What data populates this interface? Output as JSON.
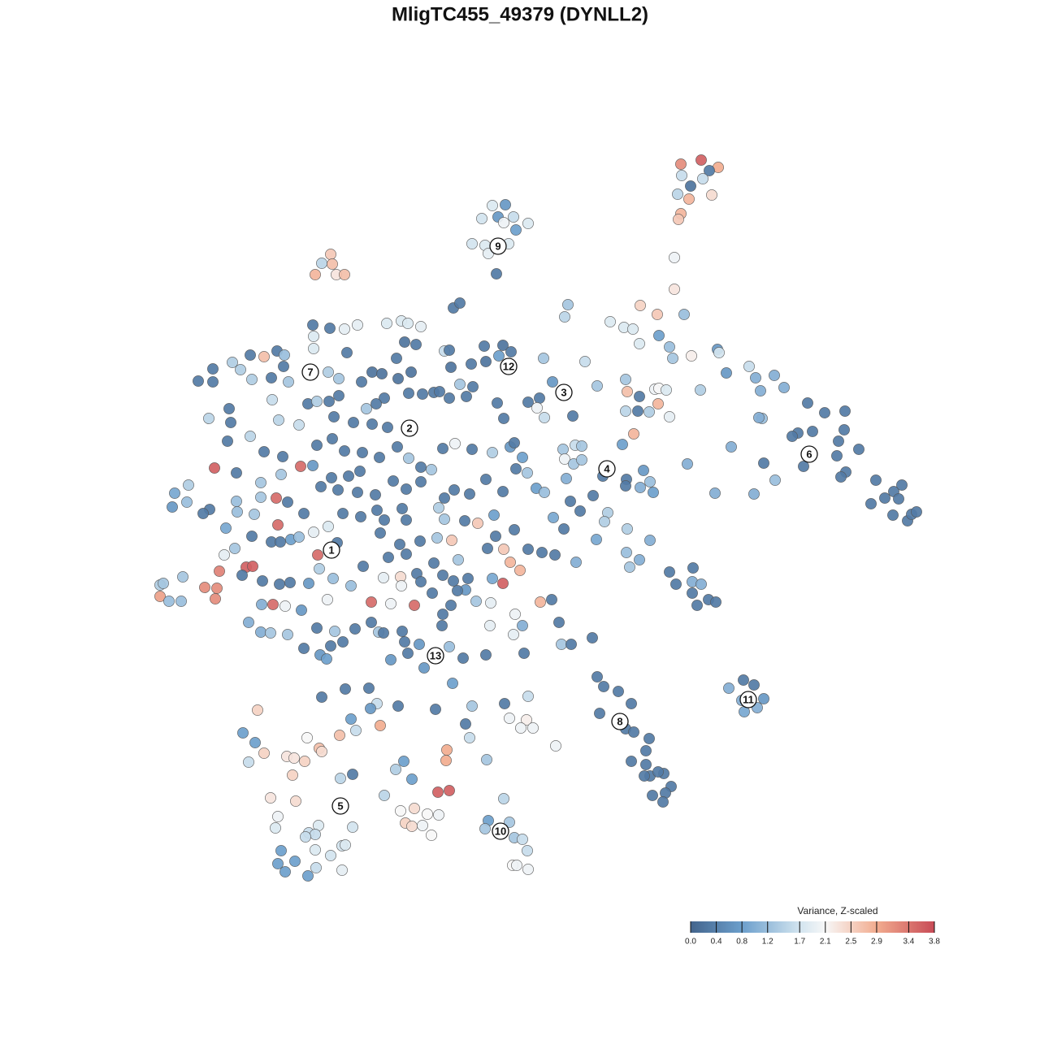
{
  "chart_data": {
    "type": "scatter",
    "title": "MligTC455_49379 (DYNLL2)",
    "xlim": [
      0,
      1280
    ],
    "ylim": [
      1280,
      0
    ],
    "colorbar": {
      "title": "Variance, Z-scaled",
      "lim": [
        0,
        3.8
      ],
      "ticks": [
        {
          "value": 0,
          "label": "0.0"
        },
        0.4,
        0.8,
        1.2,
        1.7,
        2.1,
        2.5,
        2.9,
        3.4,
        3.8
      ],
      "stops": [
        [
          0,
          "#44658d"
        ],
        [
          0.8,
          "#6c9fcc"
        ],
        [
          1.7,
          "#d2e4ef"
        ],
        [
          2.1,
          "#f7f7f7"
        ],
        [
          2.9,
          "#f2ac8f"
        ],
        [
          3.8,
          "#c84b56"
        ]
      ]
    },
    "annotations": [
      {
        "text": "1",
        "x": 408,
        "y": 677
      },
      {
        "text": "2",
        "x": 504,
        "y": 527
      },
      {
        "text": "3",
        "x": 694,
        "y": 483
      },
      {
        "text": "4",
        "x": 747,
        "y": 577
      },
      {
        "text": "5",
        "x": 419,
        "y": 992
      },
      {
        "text": "6",
        "x": 996,
        "y": 559
      },
      {
        "text": "7",
        "x": 382,
        "y": 458
      },
      {
        "text": "8",
        "x": 763,
        "y": 888
      },
      {
        "text": "9",
        "x": 613,
        "y": 303
      },
      {
        "text": "10",
        "x": 616,
        "y": 1023
      },
      {
        "text": "11",
        "x": 921,
        "y": 861
      },
      {
        "text": "12",
        "x": 626,
        "y": 451
      },
      {
        "text": "13",
        "x": 536,
        "y": 807
      }
    ],
    "x": [
      863,
      838,
      884,
      873,
      839,
      865,
      850,
      834,
      848,
      876,
      838,
      835,
      830,
      830,
      606,
      622,
      613,
      632,
      593,
      620,
      650,
      635,
      581,
      597,
      626,
      601,
      611,
      407,
      396,
      409,
      388,
      414,
      424,
      558,
      566,
      699,
      695,
      788,
      809,
      842,
      751,
      768,
      779,
      811,
      787,
      824,
      828,
      851,
      883,
      885,
      385,
      406,
      386,
      386,
      424,
      440,
      476,
      494,
      502,
      518,
      498,
      512,
      547,
      553,
      596,
      619,
      629,
      614,
      580,
      598,
      555,
      669,
      720,
      427,
      488,
      244,
      262,
      262,
      286,
      308,
      325,
      341,
      350,
      296,
      310,
      334,
      349,
      355,
      282,
      257,
      284,
      280,
      308,
      335,
      343,
      368,
      325,
      348,
      379,
      390,
      404,
      417,
      417,
      405,
      411,
      390,
      409,
      264,
      291,
      321,
      346,
      370,
      385,
      215,
      232,
      212,
      230,
      258,
      250,
      278,
      291,
      292,
      313,
      321,
      340,
      354,
      374,
      342,
      310,
      334,
      345,
      358,
      368,
      386,
      404,
      415,
      276,
      289,
      303,
      311,
      270,
      197,
      201,
      225,
      197,
      208,
      223,
      252,
      267,
      265,
      298,
      323,
      344,
      357,
      380,
      391,
      393,
      410,
      432,
      322,
      336,
      351,
      371,
      306,
      321,
      333,
      354,
      390,
      412,
      374,
      394,
      407,
      422,
      402,
      403,
      437,
      445,
      458,
      470,
      490,
      506,
      473,
      463,
      451,
      435,
      458,
      477,
      503,
      520,
      534,
      541,
      553,
      566,
      574,
      582,
      612,
      620,
      650,
      664,
      661,
      670,
      680,
      705,
      489,
      503,
      518,
      531,
      545,
      560,
      581,
      606,
      628,
      633,
      643,
      635,
      649,
      660,
      670,
      702,
      714,
      681,
      694,
      424,
      446,
      467,
      443,
      429,
      408,
      395,
      416,
      440,
      462,
      484,
      500,
      518,
      547,
      559,
      578,
      598,
      619,
      540,
      547,
      572,
      588,
      608,
      610,
      600,
      620,
      633,
      628,
      640,
      650,
      667,
      683,
      709,
      422,
      444,
      464,
      473,
      495,
      500,
      517,
      538,
      556,
      564,
      468,
      492,
      478,
      500,
      447,
      472,
      493,
      494,
      513,
      518,
      534,
      545,
      558,
      576,
      573,
      563,
      586,
      604,
      606,
      619,
      532,
      457,
      481,
      510,
      555,
      545,
      544,
      495,
      466,
      457,
      472,
      498,
      502,
      481,
      516,
      522,
      553,
      570,
      603,
      598,
      645,
      634,
      643,
      632,
      665,
      679,
      688,
      691,
      703,
      729,
      693,
      708,
      716,
      695,
      706,
      716,
      697,
      735,
      766,
      742,
      771,
      770,
      792,
      788,
      800,
      804,
      787,
      770,
      772,
      770,
      785,
      799,
      780,
      810,
      806,
      811,
      820,
      824,
      862,
      730,
      748,
      744,
      772,
      734,
      800,
      771,
      787,
      775,
      894,
      922,
      930,
      953,
      965,
      936,
      938,
      934,
      994,
      1015,
      1040,
      1039,
      982,
      975,
      1000,
      1030,
      1057,
      1032,
      1041,
      1035,
      989,
      940,
      954,
      900,
      846,
      880,
      928,
      1078,
      1072,
      1089,
      1100,
      1110,
      1106,
      1099,
      1117,
      1122,
      1128,
      824,
      832,
      853,
      852,
      863,
      852,
      858,
      872,
      881,
      915,
      928,
      897,
      940,
      913,
      932,
      916,
      735,
      743,
      761,
      777,
      738,
      770,
      780,
      799,
      795,
      777,
      795,
      800,
      817,
      793,
      826,
      819,
      816,
      803,
      810,
      396,
      425,
      454,
      490,
      464,
      456,
      536,
      557,
      581,
      621,
      650,
      573,
      578,
      627,
      648,
      656,
      641,
      684,
      599,
      317,
      299,
      314,
      306,
      325,
      378,
      353,
      362,
      375,
      393,
      396,
      418,
      438,
      432,
      468,
      360,
      434,
      419,
      487,
      497,
      507,
      550,
      549,
      473,
      539,
      553,
      333,
      364,
      342,
      339,
      392,
      380,
      388,
      376,
      434,
      493,
      510,
      526,
      540,
      499,
      507,
      520,
      531,
      620,
      601,
      627,
      597,
      633,
      643,
      649,
      631,
      636,
      650,
      346,
      363,
      342,
      351,
      379,
      389,
      407,
      421,
      425,
      421,
      388
    ],
    "y": [
      197,
      202,
      206,
      210,
      216,
      220,
      229,
      239,
      245,
      240,
      263,
      270,
      317,
      356,
      253,
      252,
      267,
      267,
      269,
      274,
      275,
      283,
      300,
      302,
      300,
      312,
      337,
      313,
      324,
      325,
      338,
      338,
      338,
      379,
      373,
      375,
      390,
      376,
      387,
      387,
      396,
      403,
      405,
      413,
      423,
      427,
      441,
      438,
      430,
      434,
      400,
      404,
      414,
      429,
      405,
      400,
      398,
      395,
      398,
      402,
      421,
      424,
      432,
      431,
      426,
      425,
      433,
      438,
      448,
      445,
      452,
      441,
      445,
      434,
      441,
      469,
      470,
      454,
      446,
      437,
      439,
      432,
      437,
      455,
      467,
      465,
      451,
      470,
      503,
      515,
      520,
      543,
      537,
      492,
      517,
      523,
      556,
      562,
      497,
      494,
      458,
      466,
      487,
      494,
      513,
      548,
      540,
      576,
      582,
      594,
      584,
      574,
      573,
      607,
      597,
      624,
      618,
      627,
      632,
      650,
      617,
      630,
      633,
      612,
      613,
      618,
      632,
      646,
      660,
      667,
      667,
      664,
      661,
      655,
      648,
      668,
      683,
      675,
      698,
      697,
      703,
      720,
      718,
      710,
      734,
      740,
      740,
      723,
      724,
      737,
      708,
      715,
      719,
      717,
      718,
      683,
      700,
      712,
      721,
      744,
      744,
      746,
      751,
      766,
      778,
      779,
      781,
      773,
      777,
      798,
      806,
      795,
      790,
      811,
      738,
      774,
      470,
      458,
      460,
      466,
      458,
      490,
      497,
      503,
      520,
      522,
      526,
      484,
      485,
      483,
      482,
      490,
      473,
      488,
      476,
      496,
      515,
      495,
      490,
      502,
      514,
      470,
      512,
      550,
      564,
      575,
      578,
      552,
      546,
      553,
      557,
      550,
      545,
      563,
      577,
      582,
      601,
      606,
      617,
      629,
      637,
      651,
      555,
      557,
      563,
      580,
      586,
      588,
      599,
      603,
      606,
      609,
      592,
      602,
      593,
      613,
      603,
      608,
      590,
      605,
      625,
      639,
      641,
      644,
      634,
      660,
      675,
      676,
      652,
      692,
      702,
      676,
      680,
      683,
      692,
      632,
      636,
      628,
      640,
      626,
      640,
      666,
      662,
      665,
      689,
      656,
      670,
      686,
      682,
      697,
      711,
      710,
      721,
      706,
      716,
      693,
      708,
      715,
      712,
      726,
      727,
      740,
      742,
      712,
      718,
      730,
      741,
      743,
      745,
      745,
      756,
      770,
      777,
      778,
      766,
      779,
      790,
      804,
      812,
      793,
      822,
      796,
      810,
      770,
      806,
      804,
      756,
      770,
      781,
      741,
      738,
      766,
      793,
      793,
      785,
      553,
      548,
      549,
      565,
      571,
      566,
      589,
      475,
      547,
      586,
      590,
      598,
      579,
      600,
      593,
      606,
      488,
      467,
      482,
      506,
      506,
      507,
      534,
      497,
      479,
      478,
      480,
      513,
      480,
      610,
      631,
      642,
      651,
      664,
      665,
      680,
      689,
      698,
      459,
      451,
      465,
      462,
      477,
      481,
      515,
      514,
      496,
      508,
      506,
      529,
      533,
      537,
      531,
      561,
      553,
      543,
      581,
      587,
      574,
      570,
      591,
      550,
      571,
      607,
      608,
      591,
      620,
      613,
      605,
      597,
      614,
      634,
      641,
      633,
      630,
      704,
      719,
      699,
      716,
      719,
      730,
      745,
      738,
      741,
      837,
      843,
      847,
      860,
      862,
      871,
      876,
      833,
      845,
      851,
      866,
      878,
      897,
      901,
      909,
      924,
      937,
      941,
      955,
      952,
      955,
      968,
      976,
      987,
      979,
      950,
      858,
      848,
      847,
      869,
      866,
      872,
      873,
      841,
      869,
      866,
      857,
      891,
      908,
      884,
      886,
      896,
      896,
      918,
      935,
      874,
      902,
      914,
      938,
      927,
      908,
      931,
      933,
      937,
      921,
      925,
      905,
      899,
      885,
      893,
      954,
      953,
      958,
      947,
      937,
      959,
      923,
      936,
      979,
      975,
      973,
      982,
      986,
      1005,
      1019,
      1016,
      1025,
      1027,
      1030,
      1018,
      998,
      995,
      1002,
      1003,
      1013,
      1017,
      1016,
      1028,
      983,
      1010,
      1012,
      1020,
      1031,
      1033,
      1047,
      1065,
      1065,
      1070,
      1047,
      1060,
      1063,
      1073,
      1078,
      1068,
      1053,
      1041,
      1040,
      1071,
      1046
    ],
    "values": [
      3.6,
      3.2,
      2.9,
      0.3,
      1.6,
      1.6,
      0.2,
      1.5,
      2.8,
      2.4,
      2.8,
      2.6,
      2.0,
      2.3,
      1.8,
      0.7,
      0.7,
      1.6,
      1.7,
      2.0,
      1.8,
      0.8,
      1.7,
      1.8,
      1.8,
      1.9,
      0.3,
      2.6,
      1.5,
      2.7,
      2.8,
      2.3,
      2.7,
      0.3,
      0.3,
      1.3,
      1.5,
      2.5,
      2.6,
      1.2,
      1.8,
      1.8,
      1.8,
      0.8,
      1.8,
      1.2,
      1.3,
      2.2,
      0.7,
      1.7,
      0.3,
      0.3,
      1.8,
      1.8,
      1.9,
      1.9,
      1.8,
      1.8,
      1.8,
      1.9,
      0.2,
      0.3,
      1.6,
      0.3,
      0.3,
      0.2,
      0.3,
      0.8,
      0.3,
      0.2,
      0.2,
      1.3,
      1.6,
      0.3,
      0.3,
      0.3,
      0.3,
      0.3,
      1.4,
      0.3,
      2.7,
      0.3,
      1.2,
      1.4,
      1.4,
      0.3,
      0.3,
      1.3,
      0.3,
      1.5,
      0.3,
      0.3,
      1.5,
      1.6,
      1.5,
      1.6,
      0.3,
      0.3,
      0.3,
      1.4,
      1.4,
      1.3,
      0.3,
      0.3,
      0.3,
      0.3,
      0.3,
      3.6,
      0.3,
      1.3,
      1.3,
      3.5,
      0.7,
      0.9,
      1.4,
      0.7,
      1.2,
      0.3,
      0.3,
      0.9,
      1.2,
      1.2,
      1.3,
      1.3,
      3.5,
      0.3,
      0.3,
      3.5,
      0.3,
      0.3,
      0.3,
      0.8,
      1.2,
      1.9,
      1.8,
      0.3,
      1.9,
      1.3,
      3.6,
      3.6,
      3.3,
      1.4,
      1.3,
      1.3,
      3.0,
      1.2,
      1.2,
      3.2,
      3.2,
      3.2,
      0.3,
      0.3,
      0.3,
      0.3,
      0.7,
      3.5,
      1.4,
      1.2,
      1.2,
      1.0,
      3.5,
      2.0,
      0.7,
      1.0,
      1.0,
      1.3,
      1.3,
      0.3,
      1.3,
      0.3,
      0.7,
      0.3,
      0.3,
      0.8,
      2.0,
      0.3,
      0.3,
      0.2,
      0.2,
      0.2,
      0.2,
      0.3,
      0.3,
      1.3,
      0.3,
      0.3,
      0.3,
      0.3,
      0.3,
      0.3,
      0.3,
      0.3,
      1.3,
      0.3,
      0.3,
      0.3,
      0.3,
      0.3,
      0.3,
      2.0,
      1.6,
      0.7,
      0.3,
      0.3,
      1.3,
      0.3,
      1.3,
      0.3,
      2.0,
      0.3,
      1.4,
      0.7,
      0.3,
      0.8,
      0.3,
      1.3,
      0.8,
      1.2,
      0.3,
      0.3,
      0.9,
      0.3,
      0.3,
      0.3,
      0.3,
      0.3,
      0.3,
      0.3,
      0.3,
      0.3,
      0.3,
      0.3,
      0.3,
      0.3,
      0.3,
      0.3,
      0.3,
      0.3,
      0.3,
      0.3,
      1.4,
      1.3,
      0.3,
      2.6,
      0.8,
      0.3,
      0.3,
      2.6,
      0.3,
      2.8,
      2.8,
      0.3,
      0.3,
      0.3,
      1.0,
      0.3,
      0.3,
      0.3,
      0.3,
      0.3,
      0.3,
      0.3,
      1.3,
      2.6,
      1.3,
      0.3,
      0.3,
      0.3,
      0.3,
      0.3,
      1.9,
      2.4,
      2.0,
      0.3,
      0.3,
      0.3,
      0.3,
      0.3,
      0.3,
      0.7,
      0.3,
      1.3,
      1.9,
      0.9,
      3.6,
      0.3,
      3.5,
      2.0,
      3.5,
      0.3,
      0.3,
      0.3,
      0.3,
      1.3,
      0.3,
      0.3,
      0.3,
      0.3,
      0.7,
      0.7,
      0.7,
      1.2,
      0.3,
      1.9,
      0.3,
      0.3,
      2.0,
      1.0,
      1.9,
      2.8,
      0.3,
      0.3,
      1.3,
      0.3,
      0.3,
      1.3,
      1.6,
      1.3,
      2.0,
      1.3,
      1.3,
      1.0,
      1.3,
      0.8,
      0.3,
      0.3,
      0.3,
      0.7,
      1.0,
      1.2,
      0.8,
      0.3,
      1.3,
      2.7,
      1.5,
      0.3,
      1.4,
      2.8,
      2.8,
      2.0,
      2.1,
      1.8,
      1.9,
      1.4,
      0.3,
      1.4,
      1.4,
      1.4,
      0.9,
      1.0,
      1.2,
      1.0,
      1.3,
      0.7,
      1.6,
      1.0,
      1.0,
      1.0,
      1.0,
      1.2,
      1.0,
      0.3,
      0.3,
      0.3,
      0.3,
      0.3,
      0.3,
      0.3,
      0.3,
      0.3,
      0.3,
      0.3,
      0.3,
      0.3,
      0.3,
      1.2,
      1.0,
      1.0,
      1.0,
      1.0,
      0.3,
      0.3,
      0.3,
      0.3,
      0.3,
      0.3,
      0.3,
      0.3,
      0.3,
      0.3,
      0.3,
      0.3,
      0.3,
      1.0,
      1.0,
      0.3,
      0.3,
      0.3,
      0.3,
      0.3,
      0.3,
      1.0,
      0.7,
      1.0,
      1.0,
      0.9,
      0.3,
      0.3,
      0.3,
      0.3,
      0.3,
      0.3,
      0.3,
      0.3,
      0.3,
      0.3,
      0.3,
      0.3,
      0.3,
      0.3,
      0.3,
      0.3,
      0.3,
      0.3,
      0.3,
      0.3,
      0.3,
      0.3,
      0.3,
      1.6,
      0.7,
      0.3,
      0.8,
      1.3,
      0.3,
      1.6,
      0.3,
      1.6,
      2.0,
      2.2,
      2.0,
      2.0,
      2.0,
      1.3,
      2.5,
      0.8,
      0.8,
      1.6,
      2.5,
      2.1,
      2.3,
      2.3,
      2.5,
      2.7,
      2.4,
      2.7,
      1.6,
      0.8,
      2.9,
      2.5,
      0.3,
      1.5,
      1.4,
      0.8,
      0.8,
      2.9,
      2.9,
      1.5,
      3.6,
      3.6,
      2.3,
      2.4,
      2.0,
      1.8,
      1.8,
      1.6,
      1.6,
      1.6,
      1.7,
      2.1,
      2.4,
      2.1,
      2.0,
      2.5,
      2.4,
      2.0,
      2.1,
      1.5,
      0.8,
      1.3,
      1.3,
      1.3,
      1.6,
      1.6,
      2.1,
      2.0,
      2.0,
      0.8,
      0.8,
      0.8,
      0.8,
      0.8,
      1.6,
      1.7,
      1.7,
      1.8,
      1.9,
      1.8
    ]
  }
}
